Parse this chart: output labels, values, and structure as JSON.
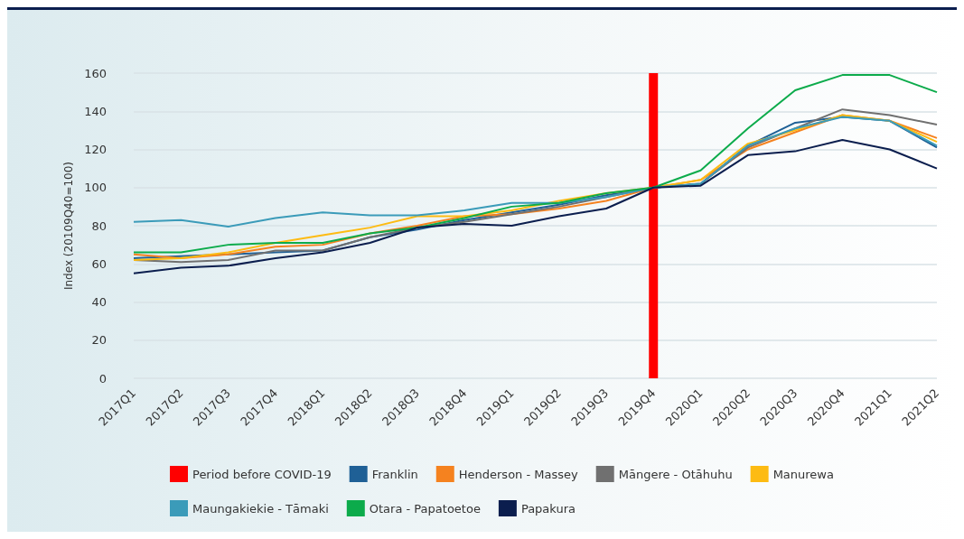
{
  "chart_data": {
    "type": "line",
    "ylabel": "Index (20109Q40=100)",
    "categories": [
      "2017Q1",
      "2017Q2",
      "2017Q3",
      "2017Q4",
      "2018Q1",
      "2018Q2",
      "2018Q3",
      "2018Q4",
      "2019Q1",
      "2019Q2",
      "2019Q3",
      "2019Q4",
      "2020Q1",
      "2020Q2",
      "2020Q3",
      "2020Q4",
      "2021Q1",
      "2021Q2"
    ],
    "ylim": [
      0,
      160
    ],
    "yticks": [
      0,
      20,
      40,
      60,
      80,
      100,
      120,
      140,
      160
    ],
    "grid": "y",
    "legend": "bottom",
    "marker": "none",
    "line_style": "solid",
    "series": [
      {
        "name": "Period before COVID-19",
        "type": "bar",
        "color": "#ff0000",
        "values": [
          null,
          null,
          null,
          null,
          null,
          null,
          null,
          null,
          null,
          null,
          null,
          160,
          null,
          null,
          null,
          null,
          null,
          null
        ]
      },
      {
        "name": "Franklin",
        "color": "#1f6096",
        "values": [
          63,
          64,
          65,
          66,
          67,
          74,
          78,
          83,
          87,
          91,
          96,
          100,
          102,
          122,
          134,
          137,
          135,
          121
        ]
      },
      {
        "name": "Henderson - Massey",
        "color": "#f5821f",
        "values": [
          65,
          63,
          65,
          69,
          70,
          76,
          80,
          85,
          86,
          89,
          93,
          100,
          104,
          120,
          129,
          138,
          135,
          126
        ]
      },
      {
        "name": "Māngere - Otāhuhu",
        "color": "#707070",
        "values": [
          62,
          61,
          62,
          67,
          67,
          74,
          79,
          82,
          86,
          90,
          95,
          100,
          102,
          121,
          131,
          141,
          138,
          133
        ]
      },
      {
        "name": "Manurewa",
        "color": "#fdbb13",
        "values": [
          62,
          63,
          66,
          71,
          75,
          79,
          85,
          85,
          88,
          93,
          97,
          100,
          104,
          123,
          130,
          138,
          135,
          124
        ]
      },
      {
        "name": "Maungakiekie - Tāmaki",
        "color": "#3b9bb9",
        "values": [
          82,
          83,
          79.5,
          84,
          87,
          85.5,
          85.5,
          88,
          92,
          92,
          95,
          100,
          102,
          122,
          131,
          137,
          135,
          122
        ]
      },
      {
        "name": "Otara - Papatoetoe",
        "color": "#0cab4b",
        "values": [
          66,
          66,
          70,
          71,
          71,
          76,
          79,
          84,
          90,
          92,
          97,
          100,
          109,
          131,
          151,
          159,
          159,
          150
        ]
      },
      {
        "name": "Papakura",
        "color": "#0b1e4e",
        "values": [
          55,
          58,
          59,
          63,
          66,
          71,
          79,
          81,
          80,
          85,
          89,
          100,
          101,
          117,
          119,
          125,
          120,
          110
        ]
      }
    ]
  }
}
